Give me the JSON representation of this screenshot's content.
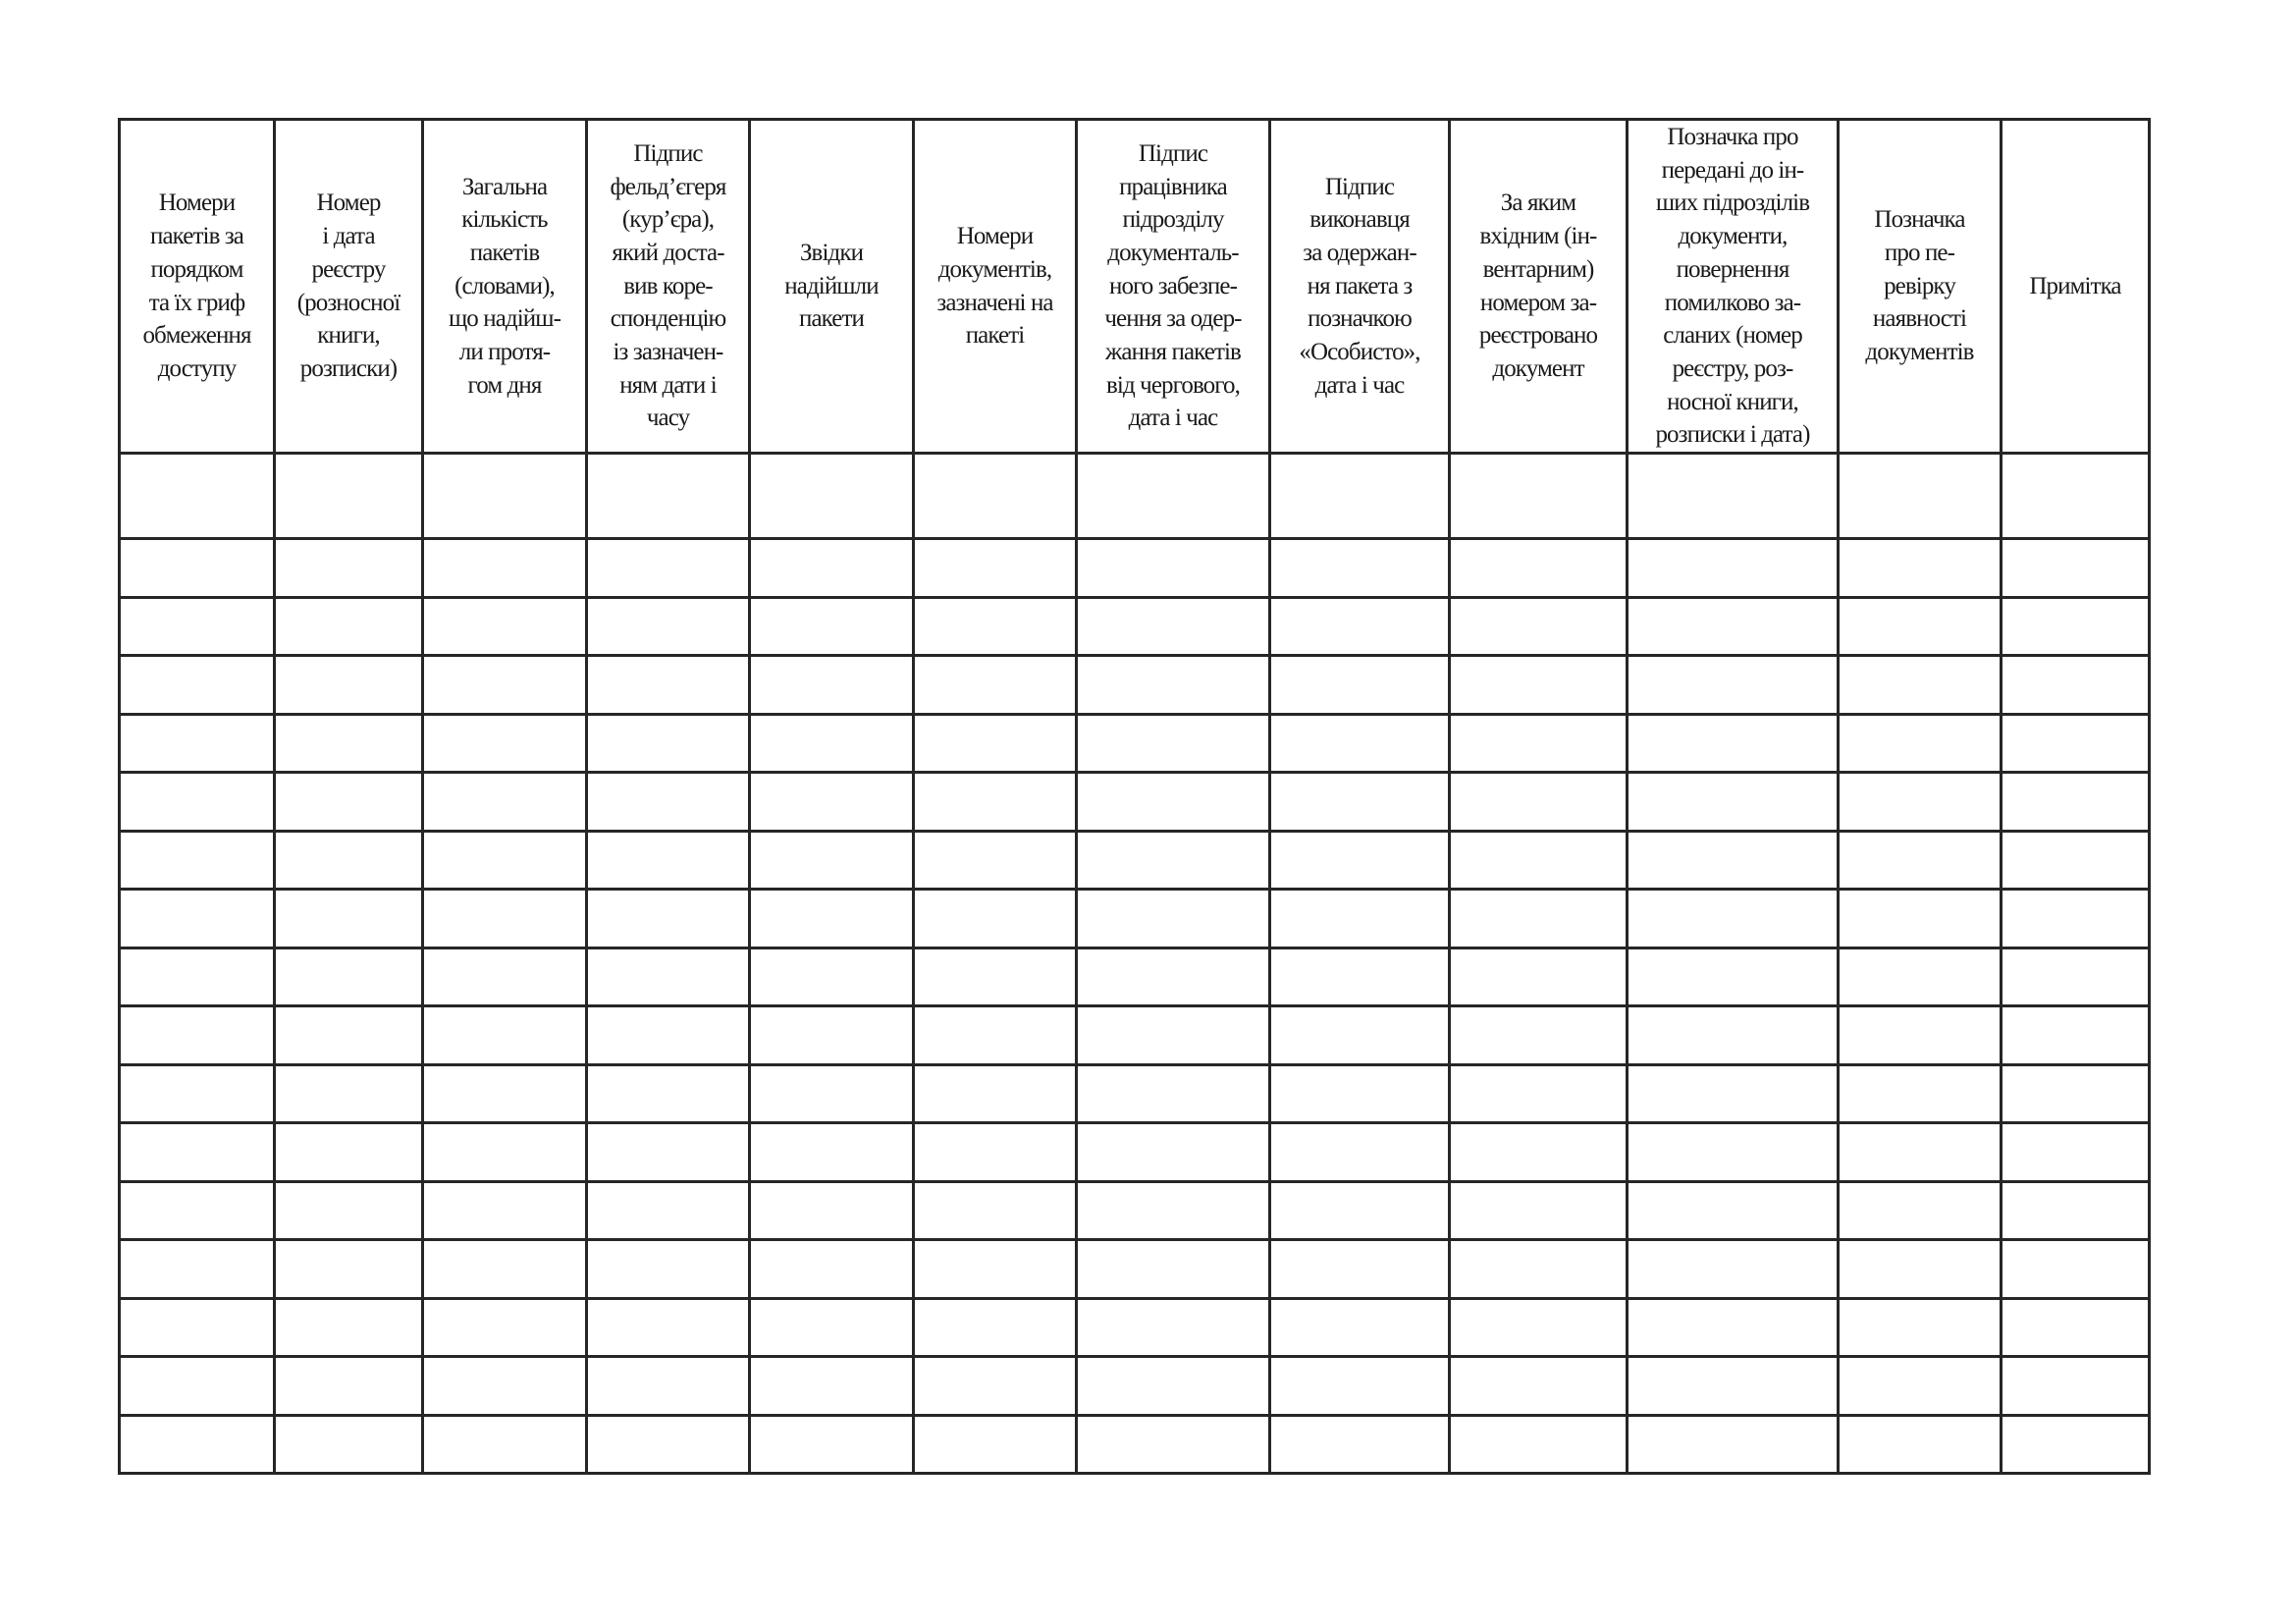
{
  "table": {
    "columns": [
      "Номери\nпакетів за\nпорядком\nта їх гриф\nобмеження\nдоступу",
      "Номер\nі дата\nреєстру\n(розносної\nкниги,\nрозписки)",
      "Загальна\nкількість\nпакетів\n(словами),\nщо надійш-\nли протя-\nгом дня",
      "Підпис\nфельд’єгеря\n(кур’єра),\nякий доста-\nвив коре-\nспонденцію\nіз зазначен-\nням дати і\nчасу",
      "Звідки\nнадійшли\nпакети",
      "Номери\nдокументів,\nзазначені на\nпакеті",
      "Підпис\nпрацівника\nпідрозділу\nдокументаль-\nного забезпе-\nчення за одер-\nжання пакетів\nвід чергового,\nдата і час",
      "Підпис\nвиконавця\nза одержан-\nня пакета з\nпозначкою\n«Особисто»,\nдата і час",
      "За яким\nвхідним (ін-\nвентарним)\nномером за-\nреєстровано\nдокумент",
      "Позначка про\nпередані до ін-\nших підрозділів\nдокументи,\nповернення\nпомилково за-\nсланих (номер\nреєстру, роз-\nносної книги,\nрозписки і дата)",
      "Позначка\nпро пе-\nревірку\nнаявності\nдокументів",
      "Примітка"
    ]
  }
}
